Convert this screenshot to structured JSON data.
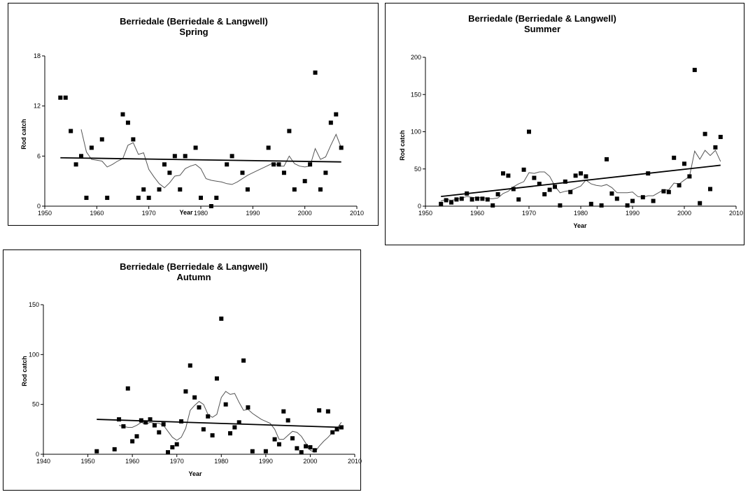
{
  "charts": [
    {
      "title": "Berriedale (Berriedale & Langwell)",
      "subtitle": "Spring",
      "xlabel": "Year",
      "ylabel": "Rod catch"
    },
    {
      "title": "Berriedale (Berriedale & Langwell)",
      "subtitle": "Summer",
      "xlabel": "Year",
      "ylabel": "Rod catch"
    },
    {
      "title": "Berriedale (Berriedale & Langwell)",
      "subtitle": "Autumn",
      "xlabel": "Year",
      "ylabel": "Rod catch"
    }
  ],
  "chart_data": [
    {
      "type": "scatter",
      "title": "Berriedale (Berriedale & Langwell)",
      "subtitle": "Spring",
      "xlabel": "Year",
      "ylabel": "Rod catch",
      "xlim": [
        1950,
        2010
      ],
      "ylim": [
        0,
        18
      ],
      "xticks": [
        1950,
        1960,
        1970,
        1980,
        1990,
        2000,
        2010
      ],
      "yticks": [
        0,
        6,
        12,
        18
      ],
      "grid": false,
      "points": [
        [
          1953,
          13
        ],
        [
          1954,
          13
        ],
        [
          1955,
          9
        ],
        [
          1956,
          5
        ],
        [
          1957,
          6
        ],
        [
          1958,
          1
        ],
        [
          1959,
          7
        ],
        [
          1961,
          8
        ],
        [
          1962,
          1
        ],
        [
          1965,
          11
        ],
        [
          1966,
          10
        ],
        [
          1967,
          8
        ],
        [
          1968,
          1
        ],
        [
          1969,
          2
        ],
        [
          1970,
          1
        ],
        [
          1972,
          2
        ],
        [
          1973,
          5
        ],
        [
          1974,
          4
        ],
        [
          1975,
          6
        ],
        [
          1976,
          2
        ],
        [
          1977,
          6
        ],
        [
          1979,
          7
        ],
        [
          1980,
          1
        ],
        [
          1982,
          0
        ],
        [
          1983,
          1
        ],
        [
          1985,
          5
        ],
        [
          1986,
          6
        ],
        [
          1988,
          4
        ],
        [
          1989,
          2
        ],
        [
          1993,
          7
        ],
        [
          1994,
          5
        ],
        [
          1995,
          5
        ],
        [
          1996,
          4
        ],
        [
          1997,
          9
        ],
        [
          1998,
          2
        ],
        [
          2000,
          3
        ],
        [
          2001,
          5
        ],
        [
          2002,
          16
        ],
        [
          2003,
          2
        ],
        [
          2004,
          4
        ],
        [
          2005,
          10
        ],
        [
          2006,
          11
        ],
        [
          2007,
          7
        ]
      ],
      "moving_average": [
        [
          1957,
          9.2
        ],
        [
          1958,
          6.5
        ],
        [
          1959,
          5.6
        ],
        [
          1960,
          5.5
        ],
        [
          1961,
          5.4
        ],
        [
          1962,
          4.7
        ],
        [
          1963,
          5.0
        ],
        [
          1964,
          5.4
        ],
        [
          1965,
          5.7
        ],
        [
          1966,
          7.3
        ],
        [
          1967,
          7.6
        ],
        [
          1968,
          6.2
        ],
        [
          1969,
          6.4
        ],
        [
          1970,
          4.4
        ],
        [
          1971,
          3.5
        ],
        [
          1972,
          2.7
        ],
        [
          1973,
          2.2
        ],
        [
          1974,
          2.8
        ],
        [
          1975,
          3.6
        ],
        [
          1976,
          3.7
        ],
        [
          1977,
          4.5
        ],
        [
          1978,
          4.8
        ],
        [
          1979,
          5.0
        ],
        [
          1980,
          4.5
        ],
        [
          1981,
          3.3
        ],
        [
          1982,
          3.1
        ],
        [
          1983,
          3.0
        ],
        [
          1984,
          2.9
        ],
        [
          1985,
          2.7
        ],
        [
          1986,
          2.6
        ],
        [
          1987,
          2.9
        ],
        [
          1988,
          3.3
        ],
        [
          1989,
          3.7
        ],
        [
          1990,
          4.0
        ],
        [
          1991,
          4.3
        ],
        [
          1992,
          4.6
        ],
        [
          1993,
          4.9
        ],
        [
          1994,
          5.2
        ],
        [
          1995,
          4.8
        ],
        [
          1996,
          4.8
        ],
        [
          1997,
          6.0
        ],
        [
          1998,
          5.1
        ],
        [
          1999,
          4.8
        ],
        [
          2000,
          4.7
        ],
        [
          2001,
          4.8
        ],
        [
          2002,
          6.9
        ],
        [
          2003,
          5.6
        ],
        [
          2004,
          5.9
        ],
        [
          2005,
          7.3
        ],
        [
          2006,
          8.6
        ],
        [
          2007,
          7.0
        ]
      ],
      "trend": [
        [
          1953,
          5.8
        ],
        [
          2007,
          5.3
        ]
      ]
    },
    {
      "type": "scatter",
      "title": "Berriedale (Berriedale & Langwell)",
      "subtitle": "Summer",
      "xlabel": "Year",
      "ylabel": "Rod catch",
      "xlim": [
        1950,
        2010
      ],
      "ylim": [
        0,
        200
      ],
      "xticks": [
        1950,
        1960,
        1970,
        1980,
        1990,
        2000,
        2010
      ],
      "yticks": [
        0,
        50,
        100,
        150,
        200
      ],
      "grid": false,
      "points": [
        [
          1953,
          3
        ],
        [
          1954,
          8
        ],
        [
          1955,
          5
        ],
        [
          1956,
          9
        ],
        [
          1957,
          10
        ],
        [
          1958,
          17
        ],
        [
          1959,
          9
        ],
        [
          1960,
          10
        ],
        [
          1961,
          10
        ],
        [
          1962,
          9
        ],
        [
          1963,
          1
        ],
        [
          1964,
          16
        ],
        [
          1965,
          44
        ],
        [
          1966,
          41
        ],
        [
          1967,
          23
        ],
        [
          1968,
          9
        ],
        [
          1969,
          49
        ],
        [
          1970,
          100
        ],
        [
          1971,
          38
        ],
        [
          1972,
          30
        ],
        [
          1973,
          16
        ],
        [
          1974,
          22
        ],
        [
          1975,
          26
        ],
        [
          1976,
          1
        ],
        [
          1977,
          33
        ],
        [
          1978,
          19
        ],
        [
          1979,
          41
        ],
        [
          1980,
          44
        ],
        [
          1981,
          40
        ],
        [
          1982,
          3
        ],
        [
          1984,
          1
        ],
        [
          1985,
          63
        ],
        [
          1986,
          17
        ],
        [
          1987,
          10
        ],
        [
          1989,
          1
        ],
        [
          1990,
          7
        ],
        [
          1992,
          12
        ],
        [
          1993,
          44
        ],
        [
          1994,
          7
        ],
        [
          1996,
          20
        ],
        [
          1997,
          19
        ],
        [
          1998,
          65
        ],
        [
          1999,
          28
        ],
        [
          2000,
          57
        ],
        [
          2001,
          40
        ],
        [
          2002,
          183
        ],
        [
          2003,
          4
        ],
        [
          2004,
          97
        ],
        [
          2005,
          23
        ],
        [
          2006,
          79
        ],
        [
          2007,
          93
        ]
      ],
      "moving_average": [
        [
          1953,
          7
        ],
        [
          1954,
          9
        ],
        [
          1955,
          8
        ],
        [
          1956,
          9
        ],
        [
          1957,
          11
        ],
        [
          1958,
          13
        ],
        [
          1959,
          12
        ],
        [
          1960,
          11
        ],
        [
          1961,
          12
        ],
        [
          1962,
          10
        ],
        [
          1963,
          10
        ],
        [
          1964,
          11
        ],
        [
          1965,
          17
        ],
        [
          1966,
          20
        ],
        [
          1967,
          26
        ],
        [
          1968,
          30
        ],
        [
          1969,
          33
        ],
        [
          1970,
          45
        ],
        [
          1971,
          44
        ],
        [
          1972,
          46
        ],
        [
          1973,
          46
        ],
        [
          1974,
          40
        ],
        [
          1975,
          27
        ],
        [
          1976,
          18
        ],
        [
          1977,
          20
        ],
        [
          1978,
          21
        ],
        [
          1979,
          24
        ],
        [
          1980,
          27
        ],
        [
          1981,
          35
        ],
        [
          1982,
          30
        ],
        [
          1983,
          28
        ],
        [
          1984,
          27
        ],
        [
          1985,
          29
        ],
        [
          1986,
          25
        ],
        [
          1987,
          18
        ],
        [
          1988,
          18
        ],
        [
          1989,
          18
        ],
        [
          1990,
          19
        ],
        [
          1991,
          13
        ],
        [
          1992,
          12
        ],
        [
          1993,
          14
        ],
        [
          1994,
          14
        ],
        [
          1995,
          18
        ],
        [
          1996,
          22
        ],
        [
          1997,
          22
        ],
        [
          1998,
          31
        ],
        [
          1999,
          30
        ],
        [
          2000,
          35
        ],
        [
          2001,
          40
        ],
        [
          2002,
          74
        ],
        [
          2003,
          63
        ],
        [
          2004,
          75
        ],
        [
          2005,
          68
        ],
        [
          2006,
          75
        ],
        [
          2007,
          60
        ]
      ],
      "trend": [
        [
          1953,
          13
        ],
        [
          2007,
          55
        ]
      ]
    },
    {
      "type": "scatter",
      "title": "Berriedale (Berriedale & Langwell)",
      "subtitle": "Autumn",
      "xlabel": "Year",
      "ylabel": "Rod catch",
      "xlim": [
        1940,
        2010
      ],
      "ylim": [
        0,
        150
      ],
      "xticks": [
        1940,
        1950,
        1960,
        1970,
        1980,
        1990,
        2000,
        2010
      ],
      "yticks": [
        0,
        50,
        100,
        150
      ],
      "grid": false,
      "points": [
        [
          1952,
          3
        ],
        [
          1956,
          5
        ],
        [
          1957,
          35
        ],
        [
          1958,
          28
        ],
        [
          1959,
          66
        ],
        [
          1960,
          13
        ],
        [
          1961,
          18
        ],
        [
          1962,
          34
        ],
        [
          1963,
          32
        ],
        [
          1964,
          35
        ],
        [
          1965,
          29
        ],
        [
          1966,
          22
        ],
        [
          1967,
          30
        ],
        [
          1968,
          2
        ],
        [
          1969,
          7
        ],
        [
          1970,
          10
        ],
        [
          1971,
          33
        ],
        [
          1972,
          63
        ],
        [
          1973,
          89
        ],
        [
          1974,
          57
        ],
        [
          1975,
          47
        ],
        [
          1976,
          25
        ],
        [
          1977,
          38
        ],
        [
          1978,
          19
        ],
        [
          1979,
          76
        ],
        [
          1980,
          136
        ],
        [
          1981,
          50
        ],
        [
          1982,
          21
        ],
        [
          1983,
          27
        ],
        [
          1984,
          32
        ],
        [
          1985,
          94
        ],
        [
          1986,
          47
        ],
        [
          1987,
          3
        ],
        [
          1990,
          3
        ],
        [
          1992,
          15
        ],
        [
          1993,
          10
        ],
        [
          1994,
          43
        ],
        [
          1995,
          34
        ],
        [
          1996,
          16
        ],
        [
          1997,
          6
        ],
        [
          1998,
          2
        ],
        [
          1999,
          8
        ],
        [
          2000,
          7
        ],
        [
          2001,
          4
        ],
        [
          2002,
          44
        ],
        [
          2004,
          43
        ],
        [
          2005,
          22
        ],
        [
          2006,
          25
        ],
        [
          2007,
          27
        ]
      ],
      "moving_average": [
        [
          1957,
          29
        ],
        [
          1958,
          28
        ],
        [
          1959,
          27
        ],
        [
          1960,
          27
        ],
        [
          1961,
          29
        ],
        [
          1962,
          32
        ],
        [
          1963,
          30
        ],
        [
          1964,
          32
        ],
        [
          1965,
          31
        ],
        [
          1966,
          31
        ],
        [
          1967,
          29
        ],
        [
          1968,
          23
        ],
        [
          1969,
          17
        ],
        [
          1970,
          14
        ],
        [
          1971,
          17
        ],
        [
          1972,
          26
        ],
        [
          1973,
          44
        ],
        [
          1974,
          49
        ],
        [
          1975,
          53
        ],
        [
          1976,
          50
        ],
        [
          1977,
          40
        ],
        [
          1978,
          37
        ],
        [
          1979,
          40
        ],
        [
          1980,
          57
        ],
        [
          1981,
          63
        ],
        [
          1982,
          60
        ],
        [
          1983,
          61
        ],
        [
          1984,
          52
        ],
        [
          1985,
          44
        ],
        [
          1986,
          45
        ],
        [
          1987,
          41
        ],
        [
          1988,
          38
        ],
        [
          1989,
          35
        ],
        [
          1990,
          33
        ],
        [
          1991,
          31
        ],
        [
          1992,
          25
        ],
        [
          1993,
          15
        ],
        [
          1994,
          15
        ],
        [
          1995,
          19
        ],
        [
          1996,
          23
        ],
        [
          1997,
          22
        ],
        [
          1998,
          18
        ],
        [
          1999,
          11
        ],
        [
          2000,
          4
        ],
        [
          2001,
          2
        ],
        [
          2002,
          8
        ],
        [
          2003,
          13
        ],
        [
          2004,
          17
        ],
        [
          2005,
          22
        ],
        [
          2006,
          26
        ],
        [
          2007,
          32
        ]
      ],
      "trend": [
        [
          1952,
          35
        ],
        [
          2007,
          27
        ]
      ]
    }
  ]
}
